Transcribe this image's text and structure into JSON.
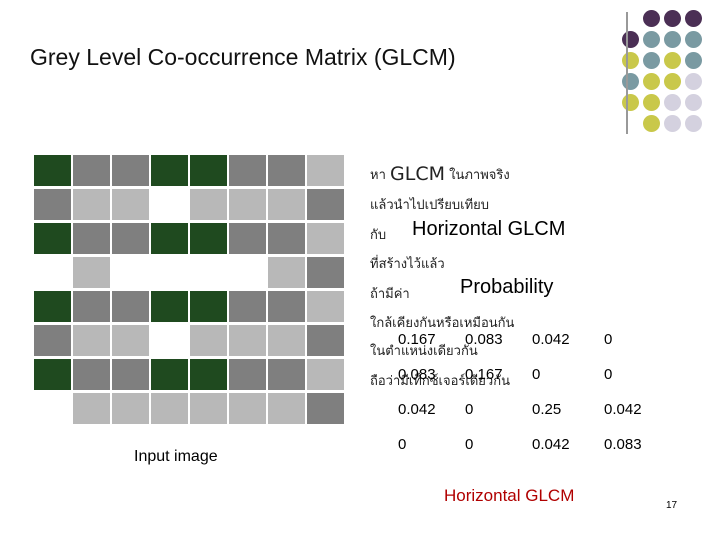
{
  "title": "Grey Level Co-occurrence Matrix (GLCM)",
  "palette": {
    "purple": "#4b2f55",
    "teal": "#7a9aa2",
    "olive": "#c9c84a",
    "lavender": "#d4d1df",
    "cell_dark": "#1f4a1f",
    "cell_mid": "#7f7f7f",
    "cell_light": "#b8b8b8",
    "cell_white": "#ffffff",
    "caption_red": "#b00000"
  },
  "input_image": {
    "caption": "Input image",
    "rows": [
      [
        3,
        2,
        2,
        3,
        3,
        2,
        2,
        1
      ],
      [
        2,
        1,
        1,
        0,
        1,
        1,
        1,
        2
      ],
      [
        3,
        2,
        2,
        3,
        3,
        2,
        2,
        1
      ],
      [
        0,
        1,
        0,
        0,
        0,
        0,
        1,
        2
      ],
      [
        3,
        2,
        2,
        3,
        3,
        2,
        2,
        1
      ],
      [
        2,
        1,
        1,
        0,
        1,
        1,
        1,
        2
      ],
      [
        3,
        2,
        2,
        3,
        3,
        2,
        2,
        1
      ],
      [
        0,
        1,
        1,
        1,
        1,
        1,
        1,
        2
      ]
    ]
  },
  "text": {
    "line1_thai": "หา",
    "line1_en": "GLCM",
    "line1_thai_b": "ในภาพจริง",
    "line2_thai": "แล้วนำไปเปรียบเทียบ",
    "line3_thai": "กับ",
    "line3_en": "Horizontal GLCM",
    "line4_thai": "ที่สร้างไว้แล้ว",
    "line5_thai": "ถ้ามีค่า",
    "line5_en": "Probability",
    "line6_thai": "ใกล้เคียงกันหรือเหมือนกัน",
    "line7_thai": "ในตำแหน่งเดียวกัน",
    "line8_thai": "ถือว่ามีเท็กซ์เจอร์เดียวกัน"
  },
  "matrix": {
    "rows": [
      [
        "0.167",
        "0.083",
        "0.042",
        "0"
      ],
      [
        "0.083",
        "0.167",
        "0",
        "0"
      ],
      [
        "0.042",
        "0",
        "0.25",
        "0.042"
      ],
      [
        "0",
        "0",
        "0.042",
        "0.083"
      ]
    ],
    "caption": "Horizontal GLCM"
  },
  "page_number": "17"
}
